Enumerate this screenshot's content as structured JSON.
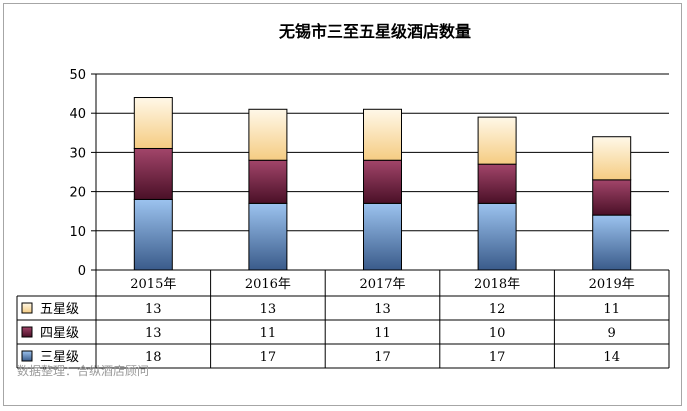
{
  "chart_data": {
    "type": "bar",
    "stacked": true,
    "title": "无锡市三至五星级酒店数量",
    "categories": [
      "2015年",
      "2016年",
      "2017年",
      "2018年",
      "2019年"
    ],
    "series": [
      {
        "name": "三星级",
        "values": [
          18,
          17,
          17,
          17,
          14
        ],
        "color": "#4f7fc0"
      },
      {
        "name": "四星级",
        "values": [
          13,
          11,
          11,
          10,
          9
        ],
        "color": "#7b2a4c"
      },
      {
        "name": "五星级",
        "values": [
          13,
          13,
          13,
          12,
          11
        ],
        "color": "#fcdf9f"
      }
    ],
    "ylim": [
      0,
      50
    ],
    "yticks": [
      0,
      10,
      20,
      30,
      40,
      50
    ],
    "grid": true,
    "data_table": true,
    "source_note": "数据整理：合纵酒店顾问"
  }
}
